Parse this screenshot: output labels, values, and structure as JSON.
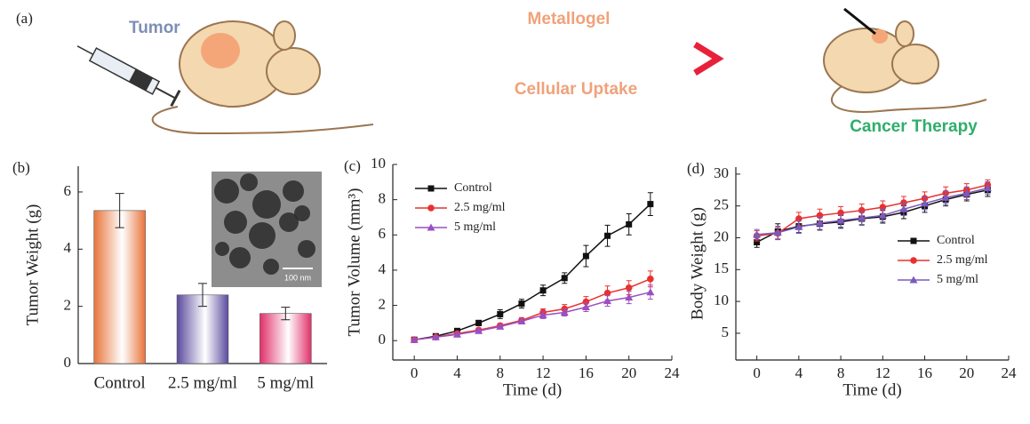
{
  "diagram": {
    "panel_label": "(a)",
    "left_label": "Tumor",
    "arrow_top_label": "Metallogel",
    "arrow_bottom_label": "Cellular Uptake",
    "right_label": "Cancer Therapy"
  },
  "chart_data": [
    {
      "type": "bar",
      "panel_label": "(b)",
      "y_label": "Tumor Weight (g)",
      "inset_scale_label": "100 nm",
      "categories": [
        "Control",
        "2.5 mg/ml",
        "5 mg/ml"
      ],
      "values": [
        5.35,
        2.4,
        1.75
      ],
      "errors": [
        0.6,
        0.4,
        0.22
      ],
      "colors": [
        "#e8743b",
        "#5b4a9e",
        "#e0306a"
      ],
      "ylim": [
        0,
        6.9
      ],
      "yticks": [
        0,
        2,
        4,
        6
      ]
    },
    {
      "type": "line",
      "panel_label": "(c)",
      "x_label": "Time (d)",
      "y_label": "Tumor Volume (mm³)",
      "x": [
        0,
        2,
        4,
        6,
        8,
        10,
        12,
        14,
        16,
        18,
        20,
        22
      ],
      "series": [
        {
          "name": "Control",
          "color": "#111111",
          "marker": "square",
          "values": [
            0.05,
            0.25,
            0.55,
            1.0,
            1.5,
            2.1,
            2.85,
            3.55,
            4.8,
            5.95,
            6.6,
            7.75
          ],
          "errors": [
            0.05,
            0.08,
            0.1,
            0.15,
            0.25,
            0.25,
            0.3,
            0.3,
            0.6,
            0.6,
            0.6,
            0.65
          ]
        },
        {
          "name": "2.5 mg/ml",
          "color": "#e8312f",
          "marker": "circle",
          "values": [
            0.05,
            0.2,
            0.4,
            0.6,
            0.85,
            1.15,
            1.6,
            1.8,
            2.2,
            2.7,
            3.0,
            3.5
          ],
          "errors": [
            0.05,
            0.05,
            0.08,
            0.1,
            0.12,
            0.15,
            0.2,
            0.25,
            0.3,
            0.4,
            0.4,
            0.45
          ]
        },
        {
          "name": "5 mg/ml",
          "color": "#9a4fc2",
          "marker": "triangle",
          "values": [
            0.05,
            0.2,
            0.35,
            0.55,
            0.8,
            1.1,
            1.45,
            1.6,
            1.9,
            2.25,
            2.45,
            2.75
          ],
          "errors": [
            0.05,
            0.05,
            0.08,
            0.1,
            0.12,
            0.15,
            0.2,
            0.2,
            0.25,
            0.3,
            0.35,
            0.4
          ]
        }
      ],
      "xlim": [
        -2,
        24
      ],
      "xticks": [
        0,
        4,
        8,
        12,
        16,
        20,
        24
      ],
      "ylim": [
        -1.1,
        10
      ],
      "yticks": [
        0,
        2,
        4,
        6,
        8,
        10
      ],
      "legend": "upper left"
    },
    {
      "type": "line",
      "panel_label": "(d)",
      "x_label": "Time (d)",
      "y_label": "Body Weight (g)",
      "x": [
        0,
        2,
        4,
        6,
        8,
        10,
        12,
        14,
        16,
        18,
        20,
        22
      ],
      "series": [
        {
          "name": "Control",
          "color": "#111111",
          "marker": "square",
          "values": [
            19.3,
            21.0,
            21.8,
            22.2,
            22.5,
            23.0,
            23.3,
            24.0,
            25.0,
            26.0,
            26.8,
            27.5
          ],
          "errors": [
            0.8,
            1.2,
            1.0,
            1.0,
            1.0,
            1.0,
            1.0,
            1.0,
            1.0,
            1.0,
            1.0,
            1.0
          ]
        },
        {
          "name": "2.5 mg/ml",
          "color": "#e8312f",
          "marker": "circle",
          "values": [
            20.3,
            20.7,
            23.0,
            23.5,
            23.9,
            24.3,
            24.8,
            25.5,
            26.2,
            27.0,
            27.5,
            28.3
          ],
          "errors": [
            0.8,
            1.0,
            1.0,
            1.0,
            1.0,
            1.0,
            1.0,
            1.0,
            1.0,
            1.0,
            1.0,
            0.8
          ]
        },
        {
          "name": "5 mg/ml",
          "color": "#7a5bbd",
          "marker": "triangle",
          "values": [
            20.5,
            20.8,
            21.7,
            22.3,
            22.7,
            23.1,
            23.5,
            24.5,
            25.4,
            26.3,
            27.0,
            27.8
          ],
          "errors": [
            0.8,
            1.0,
            1.0,
            1.0,
            1.0,
            1.0,
            1.0,
            1.0,
            1.0,
            1.0,
            1.0,
            1.0
          ]
        }
      ],
      "xlim": [
        -2,
        24
      ],
      "xticks": [
        0,
        4,
        8,
        12,
        16,
        20,
        24
      ],
      "ylim": [
        0.8,
        31.1
      ],
      "yticks": [
        5,
        10,
        15,
        20,
        25,
        30
      ],
      "legend": "lower right"
    }
  ]
}
